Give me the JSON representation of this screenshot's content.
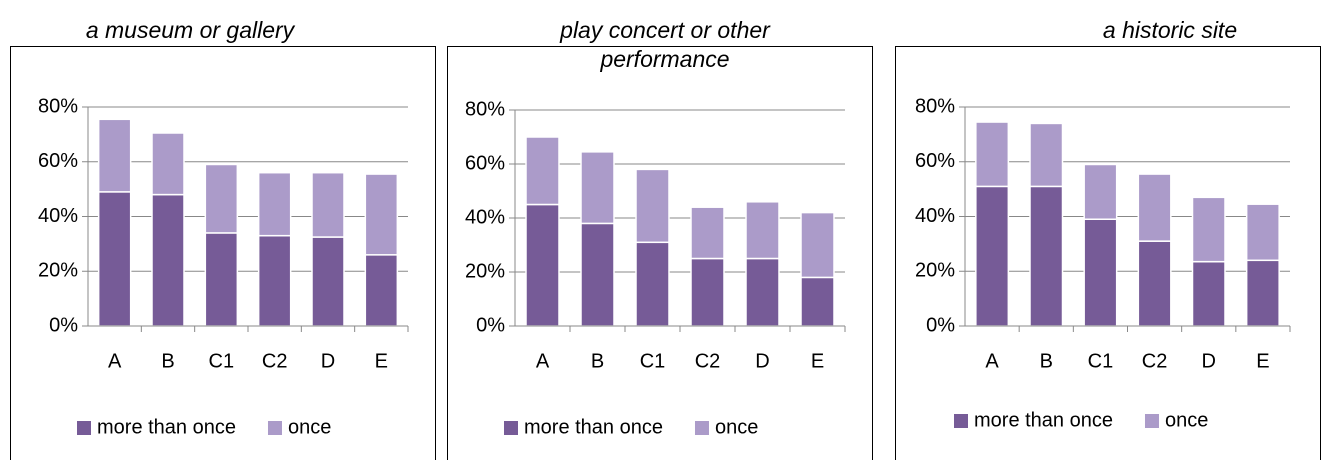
{
  "chart_data": [
    {
      "type": "bar",
      "stacked": true,
      "subtitle": "a museum or gallery",
      "categories": [
        "A",
        "B",
        "C1",
        "C2",
        "D",
        "E"
      ],
      "series": [
        {
          "name": "more than once",
          "color": "#765b97",
          "values": [
            49,
            48,
            34,
            33,
            32.5,
            26
          ]
        },
        {
          "name": "once",
          "color": "#ab9bc9",
          "values": [
            26.5,
            22.5,
            25,
            23,
            23.5,
            29.5
          ]
        }
      ],
      "ylim": [
        0,
        80
      ],
      "yticks": [
        {
          "value": 0,
          "label": "0%"
        },
        {
          "value": 20,
          "label": "20%"
        },
        {
          "value": 40,
          "label": "40%"
        },
        {
          "value": 60,
          "label": "60%"
        },
        {
          "value": 80,
          "label": "80%"
        }
      ],
      "grid": true,
      "legend": "bottom"
    },
    {
      "type": "bar",
      "stacked": true,
      "subtitle": "play concert or other performance",
      "categories": [
        "A",
        "B",
        "C1",
        "C2",
        "D",
        "E"
      ],
      "series": [
        {
          "name": "more than once",
          "color": "#765b97",
          "values": [
            45,
            38,
            31,
            25,
            25,
            18
          ]
        },
        {
          "name": "once",
          "color": "#ab9bc9",
          "values": [
            25,
            26.5,
            27,
            19,
            21,
            24
          ]
        }
      ],
      "ylim": [
        0,
        80
      ],
      "yticks": [
        {
          "value": 0,
          "label": "0%"
        },
        {
          "value": 20,
          "label": "20%"
        },
        {
          "value": 40,
          "label": "40%"
        },
        {
          "value": 60,
          "label": "60%"
        },
        {
          "value": 80,
          "label": "80%"
        }
      ],
      "grid": true,
      "legend": "bottom"
    },
    {
      "type": "bar",
      "stacked": true,
      "subtitle": "a historic site",
      "categories": [
        "A",
        "B",
        "C1",
        "C2",
        "D",
        "E"
      ],
      "series": [
        {
          "name": "more than once",
          "color": "#765b97",
          "values": [
            51,
            51,
            39,
            31,
            23.5,
            24
          ]
        },
        {
          "name": "once",
          "color": "#ab9bc9",
          "values": [
            23.5,
            23,
            20,
            24.5,
            23.5,
            20.5
          ]
        }
      ],
      "ylim": [
        0,
        80
      ],
      "yticks": [
        {
          "value": 0,
          "label": "0%"
        },
        {
          "value": 20,
          "label": "20%"
        },
        {
          "value": 40,
          "label": "40%"
        },
        {
          "value": 60,
          "label": "60%"
        },
        {
          "value": 80,
          "label": "80%"
        }
      ],
      "grid": true,
      "legend": "bottom"
    }
  ]
}
